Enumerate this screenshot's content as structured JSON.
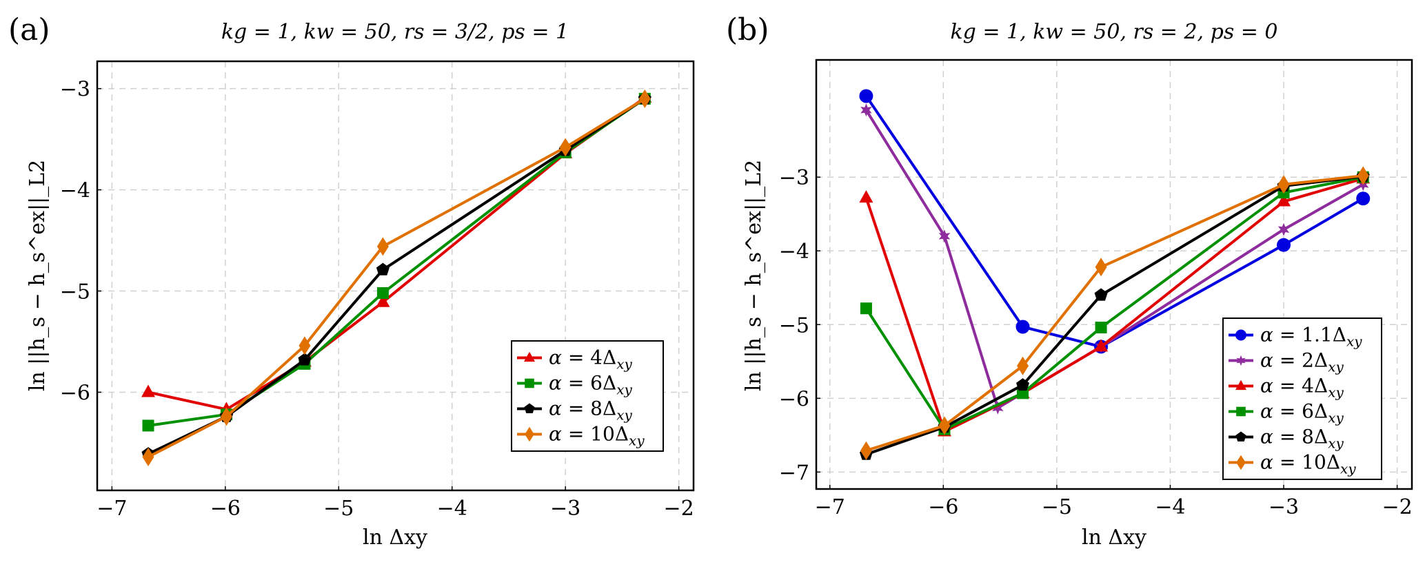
{
  "figure": {
    "panels": [
      "a",
      "b"
    ]
  },
  "chart_data": [
    {
      "type": "line",
      "panel_label": "(a)",
      "title": "kg = 1, kw = 50, rs = 3/2, ps = 1",
      "xlabel": "ln Δxy",
      "ylabel": "ln ||h_s − h_s^ex||_L2",
      "xlim": [
        -7.13,
        -1.87
      ],
      "ylim": [
        -6.97,
        -2.73
      ],
      "xticks": [
        -7,
        -6,
        -5,
        -4,
        -3,
        -2
      ],
      "xtick_labels": [
        "−7",
        "−6",
        "−5",
        "−4",
        "−3",
        "−2"
      ],
      "yticks": [
        -6,
        -5,
        -4,
        -3
      ],
      "ytick_labels": [
        "−6",
        "−5",
        "−4",
        "−3"
      ],
      "grid": true,
      "legend_position": "bottom-right",
      "series": [
        {
          "name": "α = 4Δxy",
          "coef": "4",
          "color": "#e00000",
          "marker": "triangle",
          "x": [
            -6.68,
            -5.99,
            -5.3,
            -4.61,
            -3.0,
            -2.3
          ],
          "y": [
            -6.0,
            -6.17,
            -5.7,
            -5.11,
            -3.64,
            -3.09
          ]
        },
        {
          "name": "α = 6Δxy",
          "coef": "6",
          "color": "#009000",
          "marker": "square",
          "x": [
            -6.68,
            -5.99,
            -5.3,
            -4.61,
            -3.0,
            -2.3
          ],
          "y": [
            -6.33,
            -6.22,
            -5.72,
            -5.02,
            -3.63,
            -3.1
          ]
        },
        {
          "name": "α = 8Δxy",
          "coef": "8",
          "color": "#000000",
          "marker": "pentagon",
          "x": [
            -6.68,
            -5.99,
            -5.3,
            -4.61,
            -3.0,
            -2.3
          ],
          "y": [
            -6.61,
            -6.24,
            -5.68,
            -4.79,
            -3.61,
            -3.1
          ]
        },
        {
          "name": "α = 10Δxy",
          "coef": "10",
          "color": "#e07000",
          "marker": "diamond",
          "x": [
            -6.68,
            -5.99,
            -5.3,
            -4.61,
            -3.0,
            -2.3
          ],
          "y": [
            -6.64,
            -6.24,
            -5.54,
            -4.56,
            -3.58,
            -3.1
          ]
        }
      ]
    },
    {
      "type": "line",
      "panel_label": "(b)",
      "title": "kg = 1, kw = 50, rs = 2, ps = 0",
      "xlabel": "ln Δxy",
      "ylabel": "ln ||h_s − h_s^ex||_L2",
      "xlim": [
        -7.12,
        -1.87
      ],
      "ylim": [
        -7.23,
        -1.41
      ],
      "xticks": [
        -7,
        -6,
        -5,
        -4,
        -3,
        -2
      ],
      "xtick_labels": [
        "−7",
        "−6",
        "−5",
        "−4",
        "−3",
        "−2"
      ],
      "yticks": [
        -7,
        -6,
        -5,
        -4,
        -3
      ],
      "ytick_labels": [
        "−7",
        "−6",
        "−5",
        "−4",
        "−3"
      ],
      "grid": true,
      "legend_position": "bottom-right",
      "series": [
        {
          "name": "α = 1.1Δxy",
          "coef": "1.1",
          "color": "#0000e0",
          "marker": "circle",
          "x": [
            -6.68,
            -5.3,
            -4.61,
            -3.0,
            -2.3
          ],
          "y": [
            -1.9,
            -5.03,
            -5.3,
            -3.92,
            -3.29
          ]
        },
        {
          "name": "α = 2Δxy",
          "coef": "2",
          "color": "#8e2c9e",
          "marker": "star",
          "x": [
            -6.68,
            -5.99,
            -5.52,
            -4.61,
            -3.0,
            -2.3
          ],
          "y": [
            -2.09,
            -3.8,
            -6.13,
            -5.3,
            -3.71,
            -3.1
          ]
        },
        {
          "name": "α = 4Δxy",
          "coef": "4",
          "color": "#e00000",
          "marker": "triangle",
          "x": [
            -6.68,
            -5.99,
            -5.3,
            -4.61,
            -3.0,
            -2.3
          ],
          "y": [
            -3.28,
            -6.45,
            -5.93,
            -5.3,
            -3.33,
            -3.02
          ]
        },
        {
          "name": "α = 6Δxy",
          "coef": "6",
          "color": "#009000",
          "marker": "square",
          "x": [
            -6.68,
            -5.99,
            -5.3,
            -4.61,
            -3.0,
            -2.3
          ],
          "y": [
            -4.78,
            -6.42,
            -5.93,
            -5.04,
            -3.21,
            -3.0
          ]
        },
        {
          "name": "α = 8Δxy",
          "coef": "8",
          "color": "#000000",
          "marker": "pentagon",
          "x": [
            -6.68,
            -5.99,
            -5.3,
            -4.61,
            -3.0,
            -2.3
          ],
          "y": [
            -6.76,
            -6.39,
            -5.82,
            -4.6,
            -3.12,
            -2.99
          ]
        },
        {
          "name": "α = 10Δxy",
          "coef": "10",
          "color": "#e07000",
          "marker": "diamond",
          "x": [
            -6.68,
            -5.99,
            -5.3,
            -4.61,
            -3.0,
            -2.3
          ],
          "y": [
            -6.71,
            -6.37,
            -5.56,
            -4.22,
            -3.1,
            -2.98
          ]
        }
      ]
    }
  ]
}
